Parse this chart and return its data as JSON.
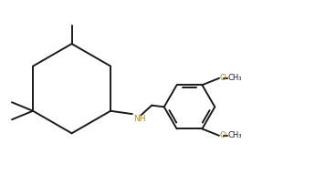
{
  "background_color": "#ffffff",
  "line_color": "#1a1a1a",
  "nh_color": "#b8860b",
  "o_color": "#b8860b",
  "lw": 1.4,
  "figsize": [
    3.57,
    1.91
  ],
  "dpi": 100,
  "xlim": [
    0.0,
    10.5
  ],
  "ylim": [
    0.5,
    6.0
  ]
}
